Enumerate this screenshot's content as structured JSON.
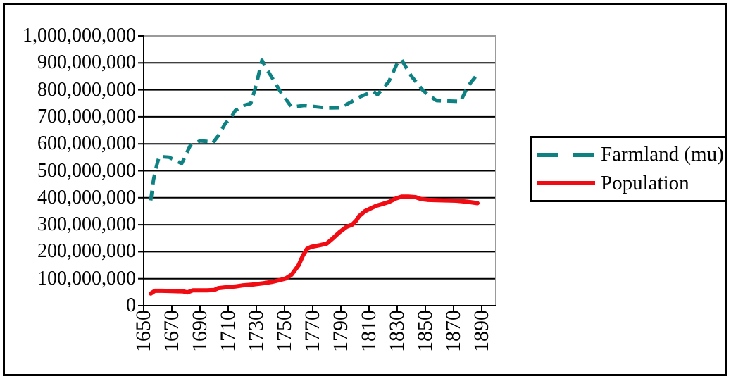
{
  "chart_data": {
    "type": "line",
    "title": "",
    "xlabel": "",
    "ylabel": "",
    "grid": true,
    "legend_position": "right",
    "x_axis": {
      "range": [
        1650,
        1900
      ],
      "ticks": [
        1650,
        1670,
        1690,
        1710,
        1730,
        1750,
        1770,
        1790,
        1810,
        1830,
        1850,
        1870,
        1890
      ],
      "tick_labels": [
        "1650",
        "1670",
        "1690",
        "1710",
        "1730",
        "1750",
        "1770",
        "1790",
        "1810",
        "1830",
        "1850",
        "1870",
        "1890"
      ]
    },
    "y_axis": {
      "min": 0,
      "max": 1000000000,
      "step": 100000000,
      "tick_labels": [
        "0",
        "100,000,000",
        "200,000,000",
        "300,000,000",
        "400,000,000",
        "500,000,000",
        "600,000,000",
        "700,000,000",
        "800,000,000",
        "900,000,000",
        "1,000,000,000"
      ]
    },
    "series": [
      {
        "name": "Farmland (mu)",
        "color": "#0E8282",
        "style": "dashed",
        "stroke_width": 5,
        "points": [
          [
            1655,
            390000000
          ],
          [
            1657,
            467000000
          ],
          [
            1659,
            515000000
          ],
          [
            1661,
            553000000
          ],
          [
            1668,
            550000000
          ],
          [
            1677,
            527000000
          ],
          [
            1683,
            593000000
          ],
          [
            1690,
            611000000
          ],
          [
            1697,
            608000000
          ],
          [
            1699,
            603000000
          ],
          [
            1703,
            630000000
          ],
          [
            1708,
            676000000
          ],
          [
            1712,
            697000000
          ],
          [
            1715,
            723000000
          ],
          [
            1720,
            741000000
          ],
          [
            1726,
            749000000
          ],
          [
            1730,
            820000000
          ],
          [
            1734,
            910000000
          ],
          [
            1737,
            880000000
          ],
          [
            1742,
            838000000
          ],
          [
            1747,
            794000000
          ],
          [
            1755,
            736000000
          ],
          [
            1764,
            742000000
          ],
          [
            1780,
            733000000
          ],
          [
            1790,
            734000000
          ],
          [
            1804,
            775000000
          ],
          [
            1813,
            795000000
          ],
          [
            1816,
            782000000
          ],
          [
            1824,
            830000000
          ],
          [
            1830,
            898000000
          ],
          [
            1833,
            912000000
          ],
          [
            1840,
            851000000
          ],
          [
            1848,
            800000000
          ],
          [
            1852,
            781000000
          ],
          [
            1858,
            760000000
          ],
          [
            1875,
            757000000
          ],
          [
            1880,
            812000000
          ],
          [
            1887,
            858000000
          ]
        ]
      },
      {
        "name": "Population",
        "color": "#F00C12",
        "style": "solid",
        "stroke_width": 6,
        "points": [
          [
            1655,
            45000000
          ],
          [
            1658,
            55000000
          ],
          [
            1663,
            55000000
          ],
          [
            1670,
            54000000
          ],
          [
            1678,
            53000000
          ],
          [
            1681,
            49000000
          ],
          [
            1685,
            57000000
          ],
          [
            1695,
            57000000
          ],
          [
            1700,
            58000000
          ],
          [
            1703,
            65000000
          ],
          [
            1708,
            68000000
          ],
          [
            1715,
            71000000
          ],
          [
            1720,
            75000000
          ],
          [
            1727,
            78000000
          ],
          [
            1735,
            83000000
          ],
          [
            1741,
            88000000
          ],
          [
            1746,
            94000000
          ],
          [
            1751,
            101000000
          ],
          [
            1755,
            115000000
          ],
          [
            1760,
            150000000
          ],
          [
            1763,
            185000000
          ],
          [
            1766,
            211000000
          ],
          [
            1769,
            218000000
          ],
          [
            1775,
            224000000
          ],
          [
            1780,
            230000000
          ],
          [
            1784,
            248000000
          ],
          [
            1789,
            272000000
          ],
          [
            1794,
            292000000
          ],
          [
            1798,
            300000000
          ],
          [
            1801,
            316000000
          ],
          [
            1803,
            332000000
          ],
          [
            1807,
            350000000
          ],
          [
            1811,
            360000000
          ],
          [
            1815,
            370000000
          ],
          [
            1819,
            376000000
          ],
          [
            1824,
            384000000
          ],
          [
            1829,
            397000000
          ],
          [
            1833,
            404000000
          ],
          [
            1838,
            404000000
          ],
          [
            1843,
            402000000
          ],
          [
            1847,
            395000000
          ],
          [
            1852,
            392000000
          ],
          [
            1858,
            391000000
          ],
          [
            1865,
            390000000
          ],
          [
            1872,
            389000000
          ],
          [
            1880,
            385000000
          ],
          [
            1887,
            380000000
          ]
        ]
      }
    ],
    "colors": {
      "gridline": "#000000",
      "top_border": "#9a9a9a",
      "right_border": "#9a9a9a",
      "axis": "#000000",
      "background": "#ffffff"
    }
  },
  "legend": {
    "items": [
      {
        "label": "Farmland (mu)"
      },
      {
        "label": "Population"
      }
    ]
  }
}
